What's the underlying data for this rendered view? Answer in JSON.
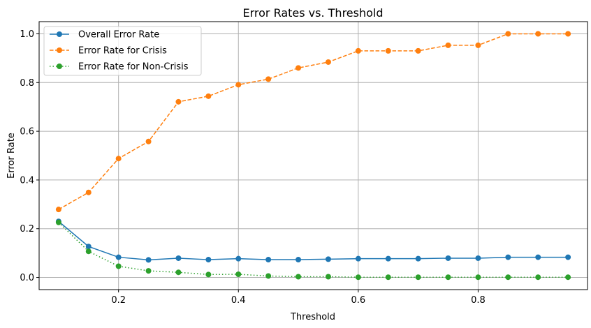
{
  "chart_data": {
    "type": "line",
    "title": "Error Rates vs. Threshold",
    "xlabel": "Threshold",
    "ylabel": "Error Rate",
    "xlim": [
      0.0675,
      0.9825
    ],
    "ylim": [
      -0.05,
      1.05
    ],
    "xticks": [
      0.2,
      0.4,
      0.6,
      0.8
    ],
    "xtick_labels": [
      "0.2",
      "0.4",
      "0.6",
      "0.8"
    ],
    "yticks": [
      0.0,
      0.2,
      0.4,
      0.6,
      0.8,
      1.0
    ],
    "ytick_labels": [
      "0.0",
      "0.2",
      "0.4",
      "0.6",
      "0.8",
      "1.0"
    ],
    "grid": true,
    "legend_position": "upper-left",
    "x": [
      0.1,
      0.15,
      0.2,
      0.25,
      0.3,
      0.35,
      0.4,
      0.45,
      0.5,
      0.55,
      0.6,
      0.65,
      0.7,
      0.75,
      0.8,
      0.85,
      0.9,
      0.95
    ],
    "series": [
      {
        "name": "Overall Error Rate",
        "color": "#1f77b4",
        "linestyle": "solid",
        "values": [
          0.23,
          0.127,
          0.083,
          0.072,
          0.079,
          0.073,
          0.077,
          0.073,
          0.073,
          0.075,
          0.077,
          0.077,
          0.077,
          0.079,
          0.079,
          0.083,
          0.083,
          0.083
        ]
      },
      {
        "name": "Error Rate for Crisis",
        "color": "#ff7f0e",
        "linestyle": "dashed",
        "values": [
          0.279,
          0.349,
          0.488,
          0.558,
          0.721,
          0.744,
          0.791,
          0.814,
          0.86,
          0.884,
          0.93,
          0.93,
          0.93,
          0.953,
          0.953,
          1.0,
          1.0,
          1.0
        ]
      },
      {
        "name": "Error Rate for Non-Crisis",
        "color": "#2ca02c",
        "linestyle": "dotted",
        "values": [
          0.226,
          0.107,
          0.046,
          0.027,
          0.021,
          0.012,
          0.013,
          0.006,
          0.003,
          0.003,
          0.001,
          0.001,
          0.001,
          0.001,
          0.001,
          0.001,
          0.001,
          0.001
        ]
      }
    ]
  }
}
